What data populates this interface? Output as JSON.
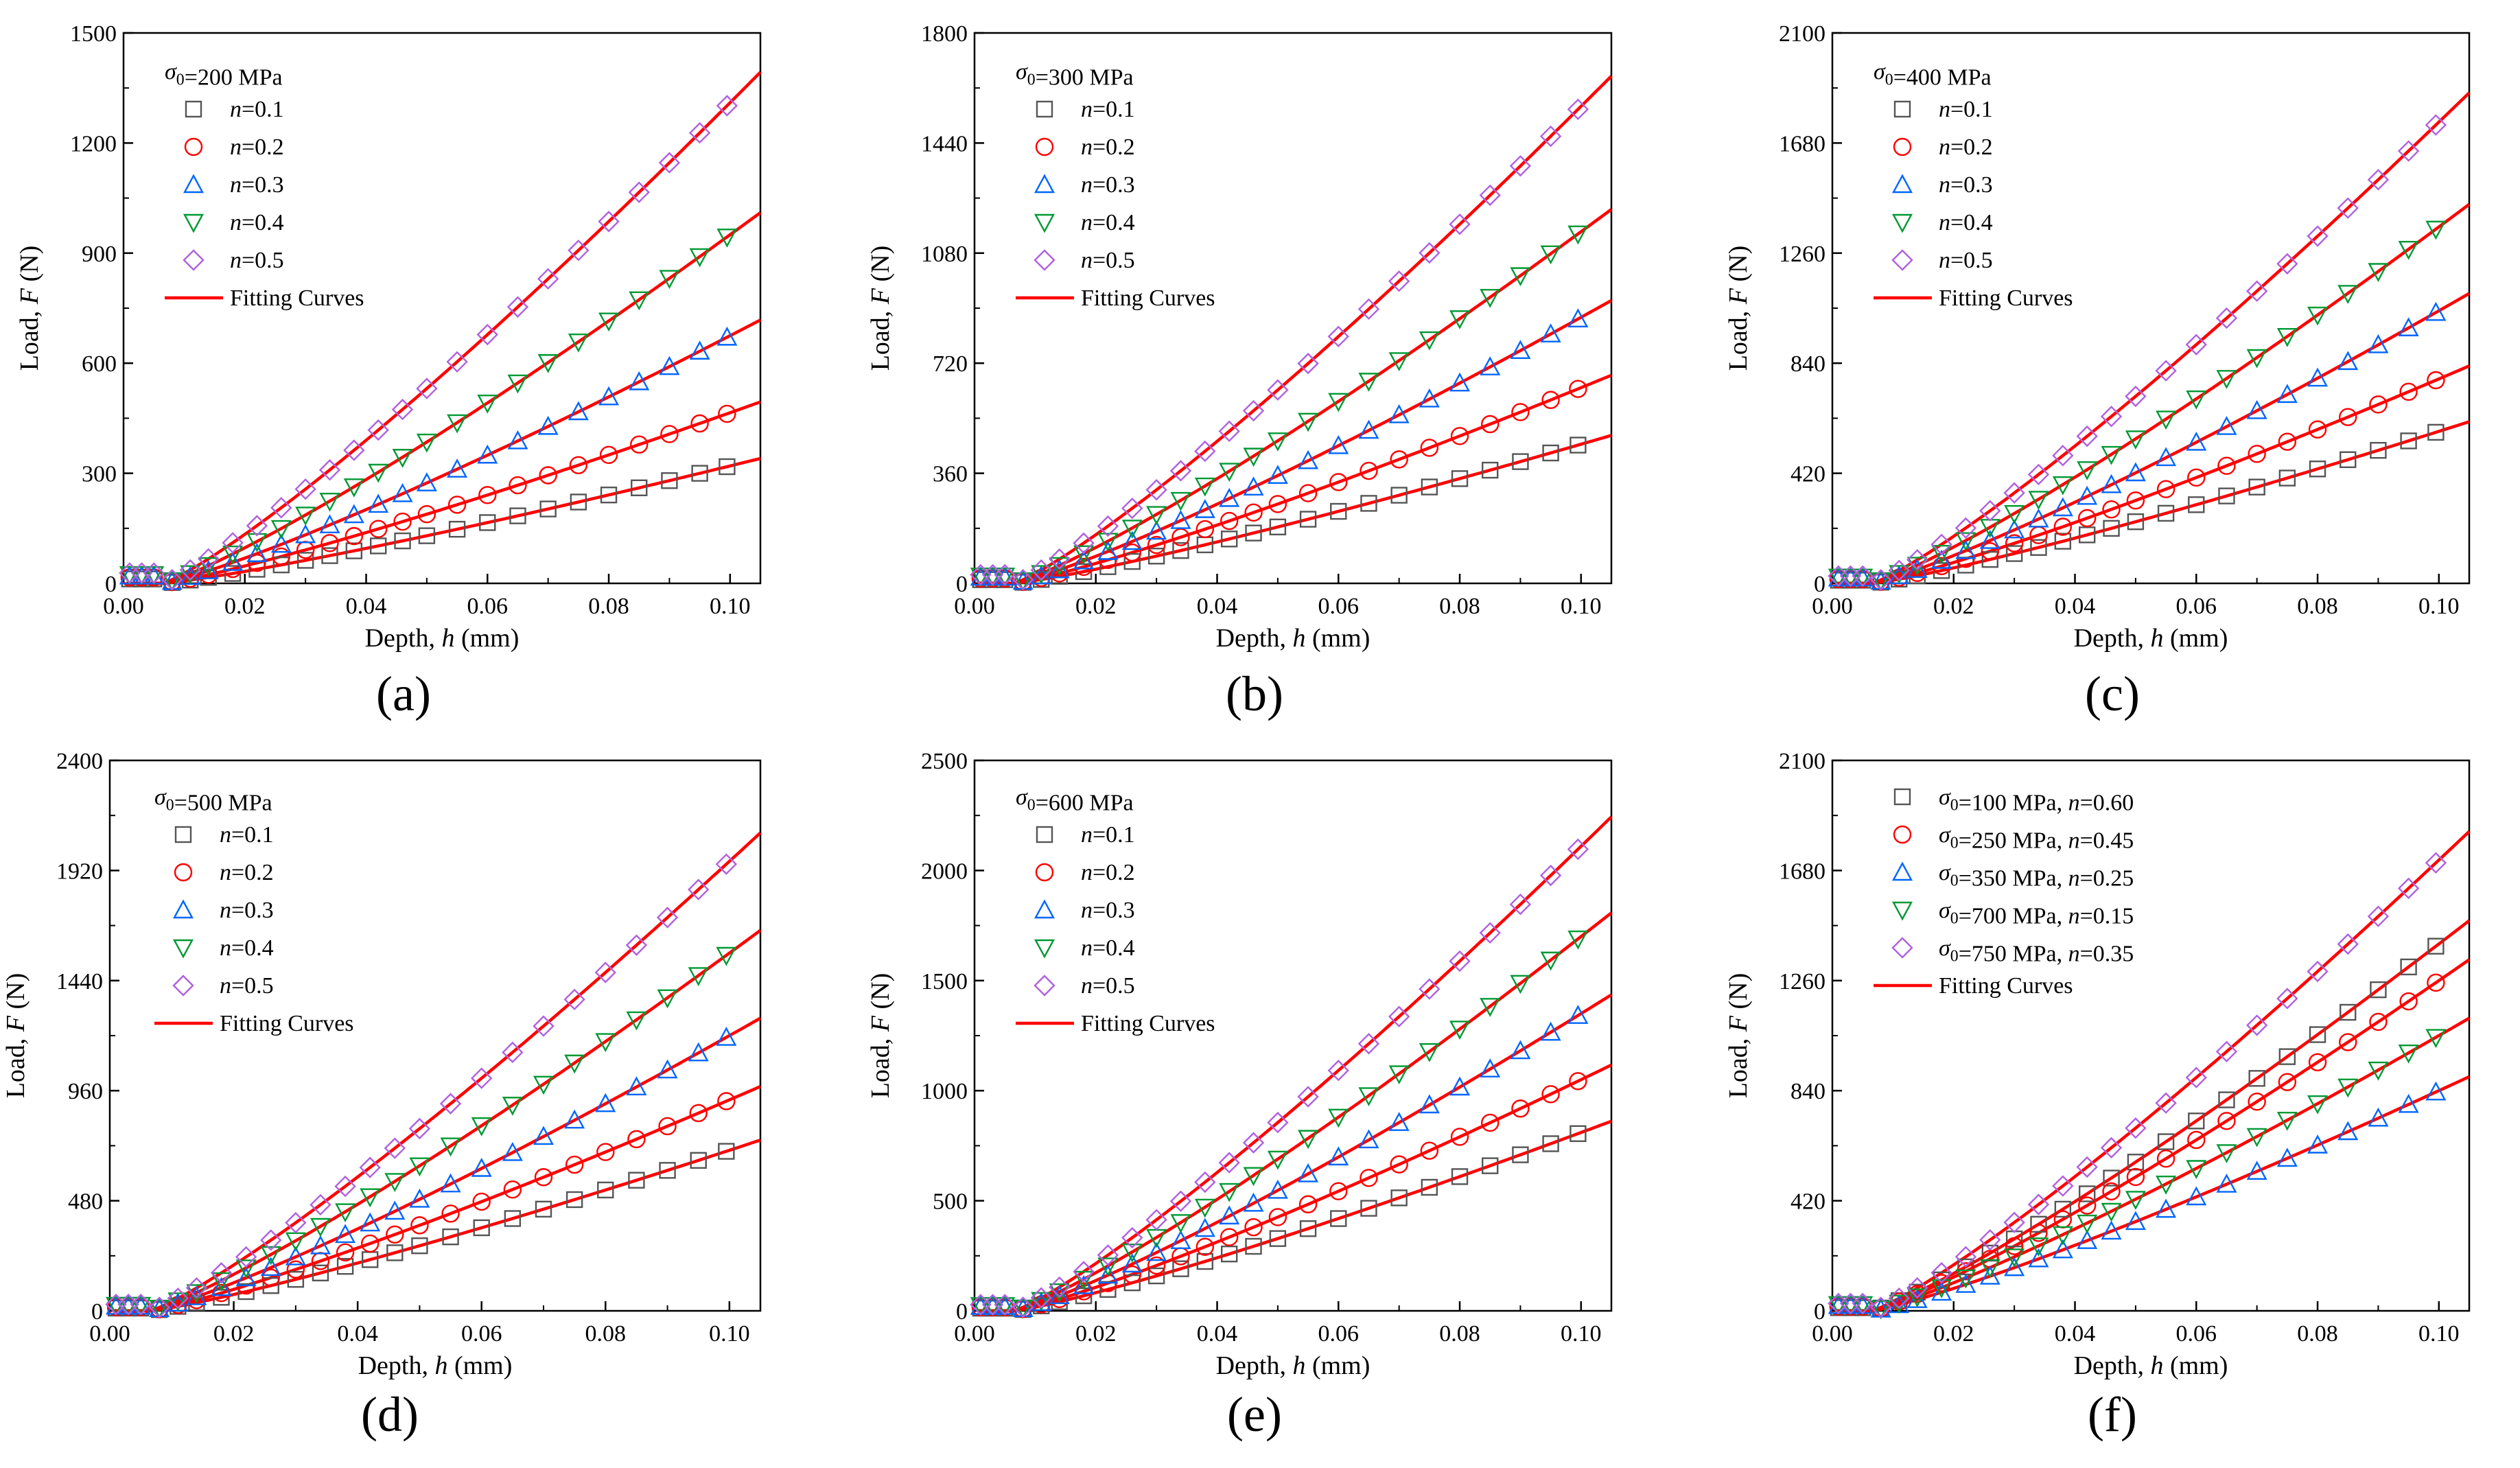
{
  "figure": {
    "x_axis_label": "Depth, h (mm)",
    "y_axis_label": "Load, F (N)",
    "fit_label": "Fitting Curves"
  },
  "colors": {
    "fit": "#ff0000",
    "gray": "#555555",
    "red": "#ff0000",
    "blue": "#0066ff",
    "green": "#009933",
    "purple": "#b060e0"
  },
  "chart_data": [
    {
      "panel": "(a)",
      "type": "scatter",
      "title": "σ0=200 MPa",
      "xlabel": "Depth, h (mm)",
      "ylabel": "Load, F (N)",
      "xlim": [
        0,
        0.105
      ],
      "ylim": [
        0,
        1500
      ],
      "xticks": [
        "0.00",
        "0.02",
        "0.04",
        "0.06",
        "0.08",
        "0.10"
      ],
      "yticks": [
        "0",
        "300",
        "600",
        "900",
        "1200",
        "1500"
      ],
      "series": [
        {
          "name": "n=0.1",
          "marker": "square",
          "color": "gray",
          "end": 320
        },
        {
          "name": "n=0.2",
          "marker": "circle",
          "color": "red",
          "end": 465
        },
        {
          "name": "n=0.3",
          "marker": "triangle-up",
          "color": "blue",
          "end": 675
        },
        {
          "name": "n=0.4",
          "marker": "triangle-down",
          "color": "green",
          "end": 950
        },
        {
          "name": "n=0.5",
          "marker": "diamond",
          "color": "purple",
          "end": 1310
        }
      ],
      "fit": "Fitting Curves"
    },
    {
      "panel": "(b)",
      "type": "scatter",
      "title": "σ0=300 MPa",
      "xlabel": "Depth, h (mm)",
      "ylabel": "Load, F (N)",
      "xlim": [
        0,
        0.105
      ],
      "ylim": [
        0,
        1800
      ],
      "xticks": [
        "0.00",
        "0.02",
        "0.04",
        "0.06",
        "0.08",
        "0.10"
      ],
      "yticks": [
        "0",
        "360",
        "720",
        "1080",
        "1440",
        "1800"
      ],
      "series": [
        {
          "name": "n=0.1",
          "marker": "square",
          "color": "gray",
          "end": 455
        },
        {
          "name": "n=0.2",
          "marker": "circle",
          "color": "red",
          "end": 640
        },
        {
          "name": "n=0.3",
          "marker": "triangle-up",
          "color": "blue",
          "end": 870
        },
        {
          "name": "n=0.4",
          "marker": "triangle-down",
          "color": "green",
          "end": 1150
        },
        {
          "name": "n=0.5",
          "marker": "diamond",
          "color": "purple",
          "end": 1560
        }
      ],
      "fit": "Fitting Curves"
    },
    {
      "panel": "(c)",
      "type": "scatter",
      "title": "σ0=400 MPa",
      "xlabel": "Depth, h (mm)",
      "ylabel": "Load, F (N)",
      "xlim": [
        0,
        0.105
      ],
      "ylim": [
        0,
        2100
      ],
      "xticks": [
        "0.00",
        "0.02",
        "0.04",
        "0.06",
        "0.08",
        "0.10"
      ],
      "yticks": [
        "0",
        "420",
        "840",
        "1260",
        "1680",
        "2100"
      ],
      "series": [
        {
          "name": "n=0.1",
          "marker": "square",
          "color": "gray",
          "end": 580
        },
        {
          "name": "n=0.2",
          "marker": "circle",
          "color": "red",
          "end": 780
        },
        {
          "name": "n=0.3",
          "marker": "triangle-up",
          "color": "blue",
          "end": 1040
        },
        {
          "name": "n=0.4",
          "marker": "triangle-down",
          "color": "green",
          "end": 1360
        },
        {
          "name": "n=0.5",
          "marker": "diamond",
          "color": "purple",
          "end": 1760
        }
      ],
      "fit": "Fitting Curves"
    },
    {
      "panel": "(d)",
      "type": "scatter",
      "title": "σ0=500 MPa",
      "xlabel": "Depth, h (mm)",
      "ylabel": "Load, F (N)",
      "xlim": [
        0,
        0.105
      ],
      "ylim": [
        0,
        2400
      ],
      "xticks": [
        "0.00",
        "0.02",
        "0.04",
        "0.06",
        "0.08",
        "0.10"
      ],
      "yticks": [
        "0",
        "480",
        "960",
        "1440",
        "1920",
        "2400"
      ],
      "series": [
        {
          "name": "n=0.1",
          "marker": "square",
          "color": "gray",
          "end": 700
        },
        {
          "name": "n=0.2",
          "marker": "circle",
          "color": "red",
          "end": 920
        },
        {
          "name": "n=0.3",
          "marker": "triangle-up",
          "color": "blue",
          "end": 1200
        },
        {
          "name": "n=0.4",
          "marker": "triangle-down",
          "color": "green",
          "end": 1560
        },
        {
          "name": "n=0.5",
          "marker": "diamond",
          "color": "purple",
          "end": 1960
        }
      ],
      "fit": "Fitting Curves"
    },
    {
      "panel": "(e)",
      "type": "scatter",
      "title": "σ0=600 MPa",
      "xlabel": "Depth, h (mm)",
      "ylabel": "Load, F (N)",
      "xlim": [
        0,
        0.105
      ],
      "ylim": [
        0,
        2500
      ],
      "xticks": [
        "0.00",
        "0.02",
        "0.04",
        "0.06",
        "0.08",
        "0.10"
      ],
      "yticks": [
        "0",
        "500",
        "1000",
        "1500",
        "2000",
        "2500"
      ],
      "series": [
        {
          "name": "n=0.1",
          "marker": "square",
          "color": "gray",
          "end": 810
        },
        {
          "name": "n=0.2",
          "marker": "circle",
          "color": "red",
          "end": 1050
        },
        {
          "name": "n=0.3",
          "marker": "triangle-up",
          "color": "blue",
          "end": 1350
        },
        {
          "name": "n=0.4",
          "marker": "triangle-down",
          "color": "green",
          "end": 1700
        },
        {
          "name": "n=0.5",
          "marker": "diamond",
          "color": "purple",
          "end": 2110
        }
      ],
      "fit": "Fitting Curves"
    },
    {
      "panel": "(f)",
      "type": "scatter",
      "title": "",
      "xlabel": "Depth, h (mm)",
      "ylabel": "Load, F (N)",
      "xlim": [
        0,
        0.105
      ],
      "ylim": [
        0,
        2100
      ],
      "xticks": [
        "0.00",
        "0.02",
        "0.04",
        "0.06",
        "0.08",
        "0.10"
      ],
      "yticks": [
        "0",
        "420",
        "840",
        "1260",
        "1680",
        "2100"
      ],
      "series": [
        {
          "name": "σ0=100 MPa, n=0.60",
          "marker": "square",
          "color": "gray",
          "end": 1400
        },
        {
          "name": "σ0=250 MPa, n=0.45",
          "marker": "circle",
          "color": "red",
          "end": 1260
        },
        {
          "name": "σ0=350 MPa, n=0.25",
          "marker": "triangle-up",
          "color": "blue",
          "end": 840
        },
        {
          "name": "σ0=700 MPa, n=0.15",
          "marker": "triangle-down",
          "color": "green",
          "end": 1050
        },
        {
          "name": "σ0=750 MPa, n=0.35",
          "marker": "diamond",
          "color": "purple",
          "end": 1720
        }
      ],
      "fit": "Fitting Curves"
    }
  ]
}
